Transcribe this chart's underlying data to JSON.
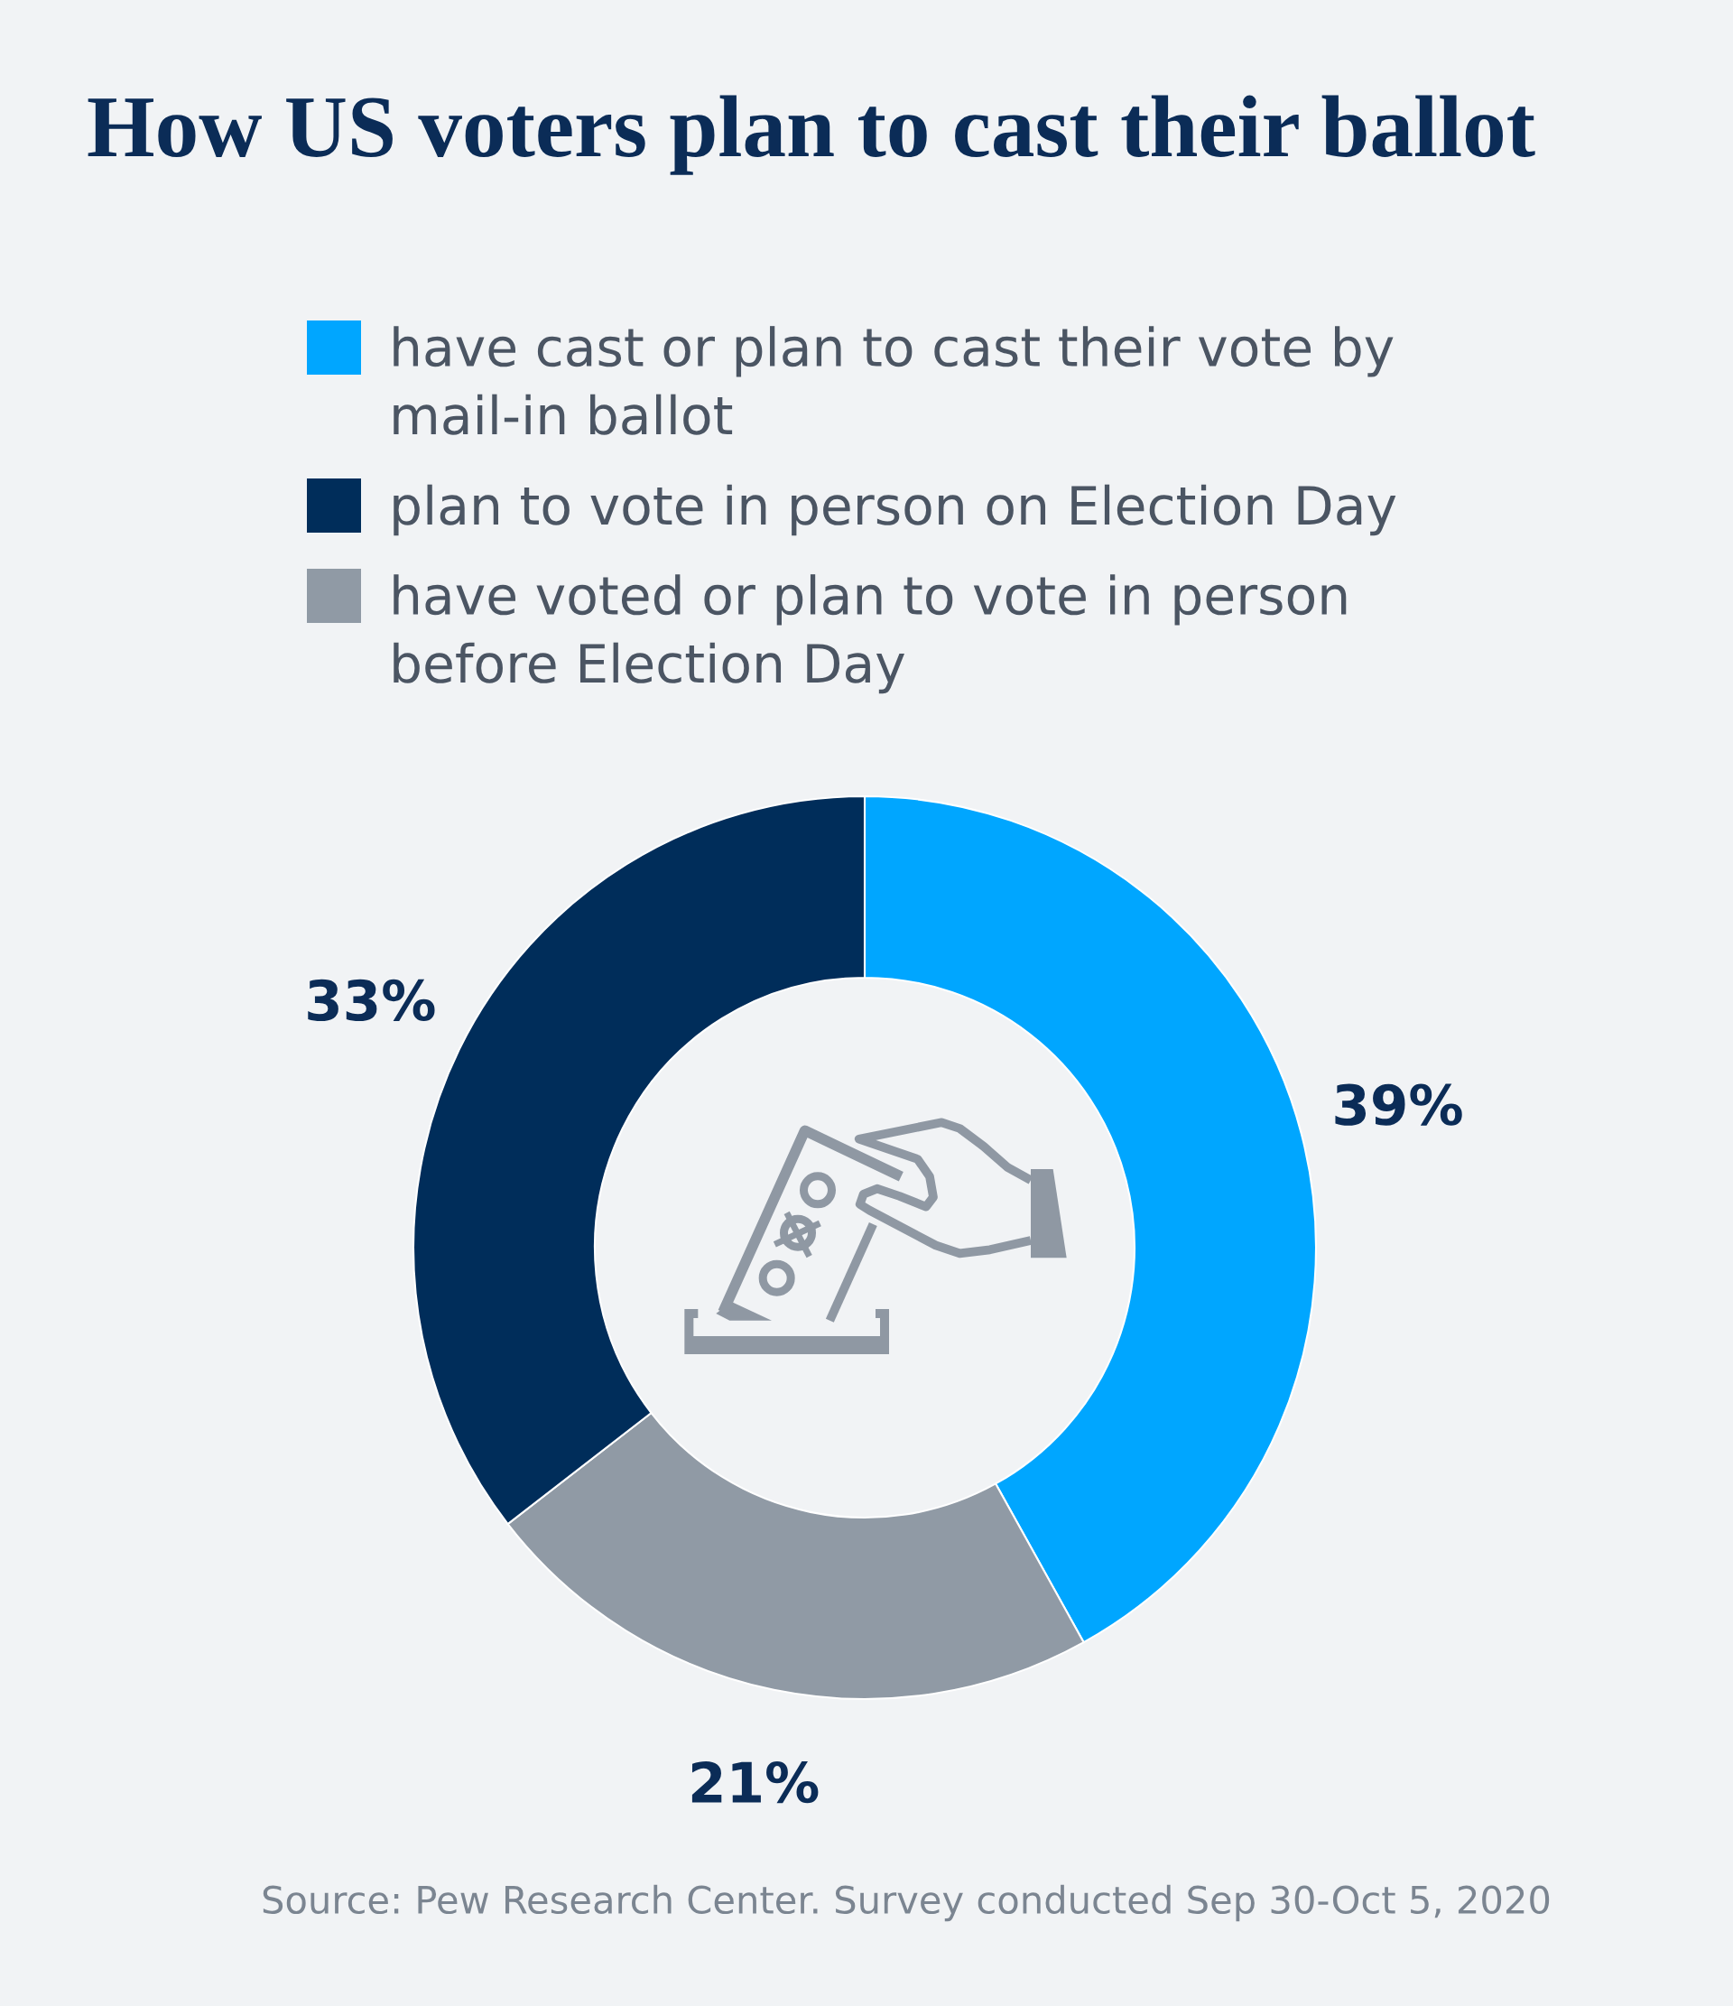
{
  "chart_data": {
    "type": "donut",
    "title": "How US voters plan to cast their ballot",
    "categories": [
      "have cast or plan to cast their vote by mail-in ballot",
      "have voted or plan to vote in person before Election Day",
      "plan to vote in person on Election Day"
    ],
    "values": [
      39,
      21,
      33
    ],
    "colors": [
      "#00a6ff",
      "#909aa5",
      "#002d5a"
    ],
    "value_labels": [
      "39%",
      "21%",
      "33%"
    ],
    "legend": "top",
    "annotations": [
      "Source: Pew Research Center. Survey conducted Sep 30-Oct 5, 2020"
    ]
  }
}
